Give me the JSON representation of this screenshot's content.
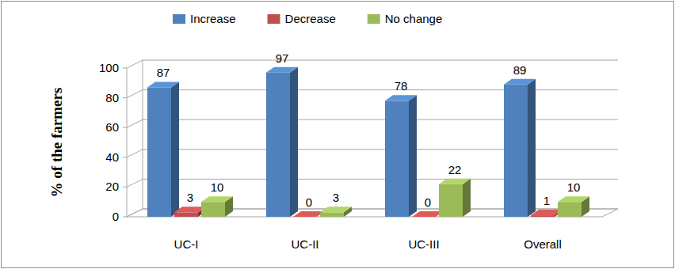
{
  "chart_data": {
    "type": "bar",
    "ylabel": "% of the farmers",
    "categories": [
      "UC-I",
      "UC-II",
      "UC-III",
      "Overall"
    ],
    "series": [
      {
        "name": "Increase",
        "color": "#4f81bd",
        "values": [
          87,
          97,
          78,
          89
        ]
      },
      {
        "name": "Decrease",
        "color": "#c0504d",
        "values": [
          3,
          0,
          0,
          1
        ]
      },
      {
        "name": "No change",
        "color": "#9bbb59",
        "values": [
          10,
          3,
          22,
          10
        ]
      }
    ],
    "ylim": [
      0,
      100
    ],
    "yticks": [
      0,
      20,
      40,
      60,
      80,
      100
    ],
    "grid": true,
    "legend": "top",
    "data_labels": true
  }
}
